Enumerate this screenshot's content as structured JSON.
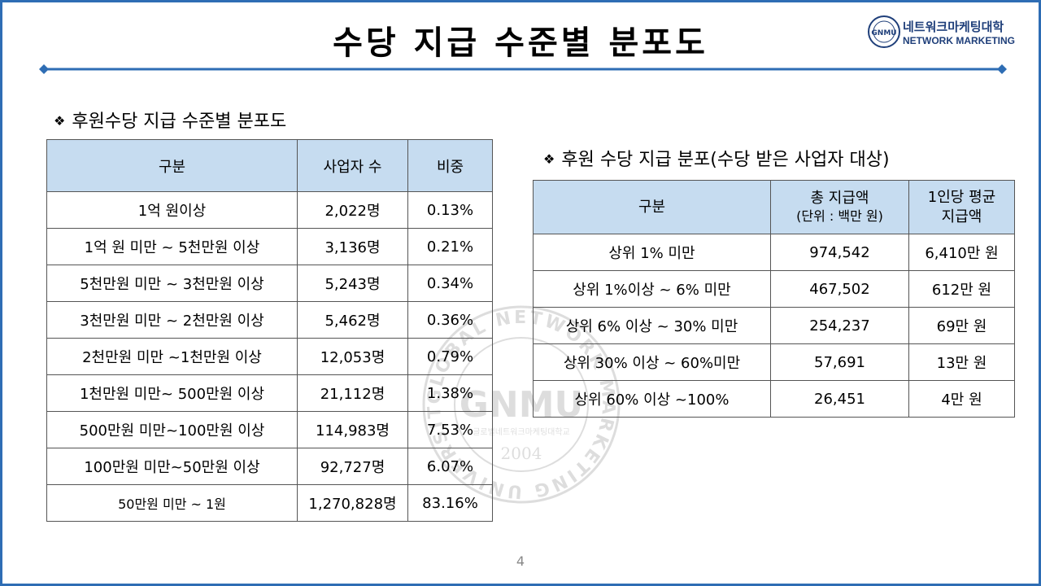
{
  "slide": {
    "title": "수당 지급 수준별 분포도",
    "page_number": "4"
  },
  "logo": {
    "korean": "네트워크마케팅대학",
    "english": "NETWORK MARKETING",
    "emblem_text": "GNMU"
  },
  "colors": {
    "frame": "#2e6db4",
    "header_fill": "#c6dcf0",
    "rule": "#2e6db4"
  },
  "left_section": {
    "heading": "후원수당 지급 수준별 분포도",
    "headers": [
      "구분",
      "사업자 수",
      "비중"
    ],
    "rows": [
      [
        "1억 원이상",
        "2,022명",
        "0.13%"
      ],
      [
        "1억 원 미만 ~ 5천만원 이상",
        "3,136명",
        "0.21%"
      ],
      [
        "5천만원 미만 ~ 3천만원 이상",
        "5,243명",
        "0.34%"
      ],
      [
        "3천만원 미만 ~ 2천만원 이상",
        "5,462명",
        "0.36%"
      ],
      [
        "2천만원 미만 ~1천만원 이상",
        "12,053명",
        "0.79%"
      ],
      [
        "1천만원 미만~ 500만원 이상",
        "21,112명",
        "1.38%"
      ],
      [
        "500만원 미만~100만원 이상",
        "114,983명",
        "7.53%"
      ],
      [
        "100만원 미만~50만원 이상",
        "92,727명",
        "6.07%"
      ],
      [
        "50만원 미만 ~ 1원",
        "1,270,828명",
        "83.16%"
      ]
    ]
  },
  "right_section": {
    "heading": "후원 수당 지급 분포(수당 받은 사업자 대상)",
    "headers": {
      "col1": "구분",
      "col2_line1": "총 지급액",
      "col2_line2": "(단위 : 백만 원)",
      "col3_line1": "1인당 평균",
      "col3_line2": "지급액"
    },
    "rows": [
      [
        "상위 1% 미만",
        "974,542",
        "6,410만 원"
      ],
      [
        "상위 1%이상 ~ 6% 미만",
        "467,502",
        "612만 원"
      ],
      [
        "상위 6% 이상 ~ 30% 미만",
        "254,237",
        "69만 원"
      ],
      [
        "상위 30% 이상 ~ 60%미만",
        "57,691",
        "13만 원"
      ],
      [
        "상위 60% 이상 ~100%",
        "26,451",
        "4만 원"
      ]
    ]
  },
  "watermark": {
    "ring_text": "GLOBAL NETWORK MARKETING UNIVERSITY",
    "center_text": "GNMU",
    "year": "2004",
    "korean": "글로벌네트워크마케팅대학교"
  }
}
